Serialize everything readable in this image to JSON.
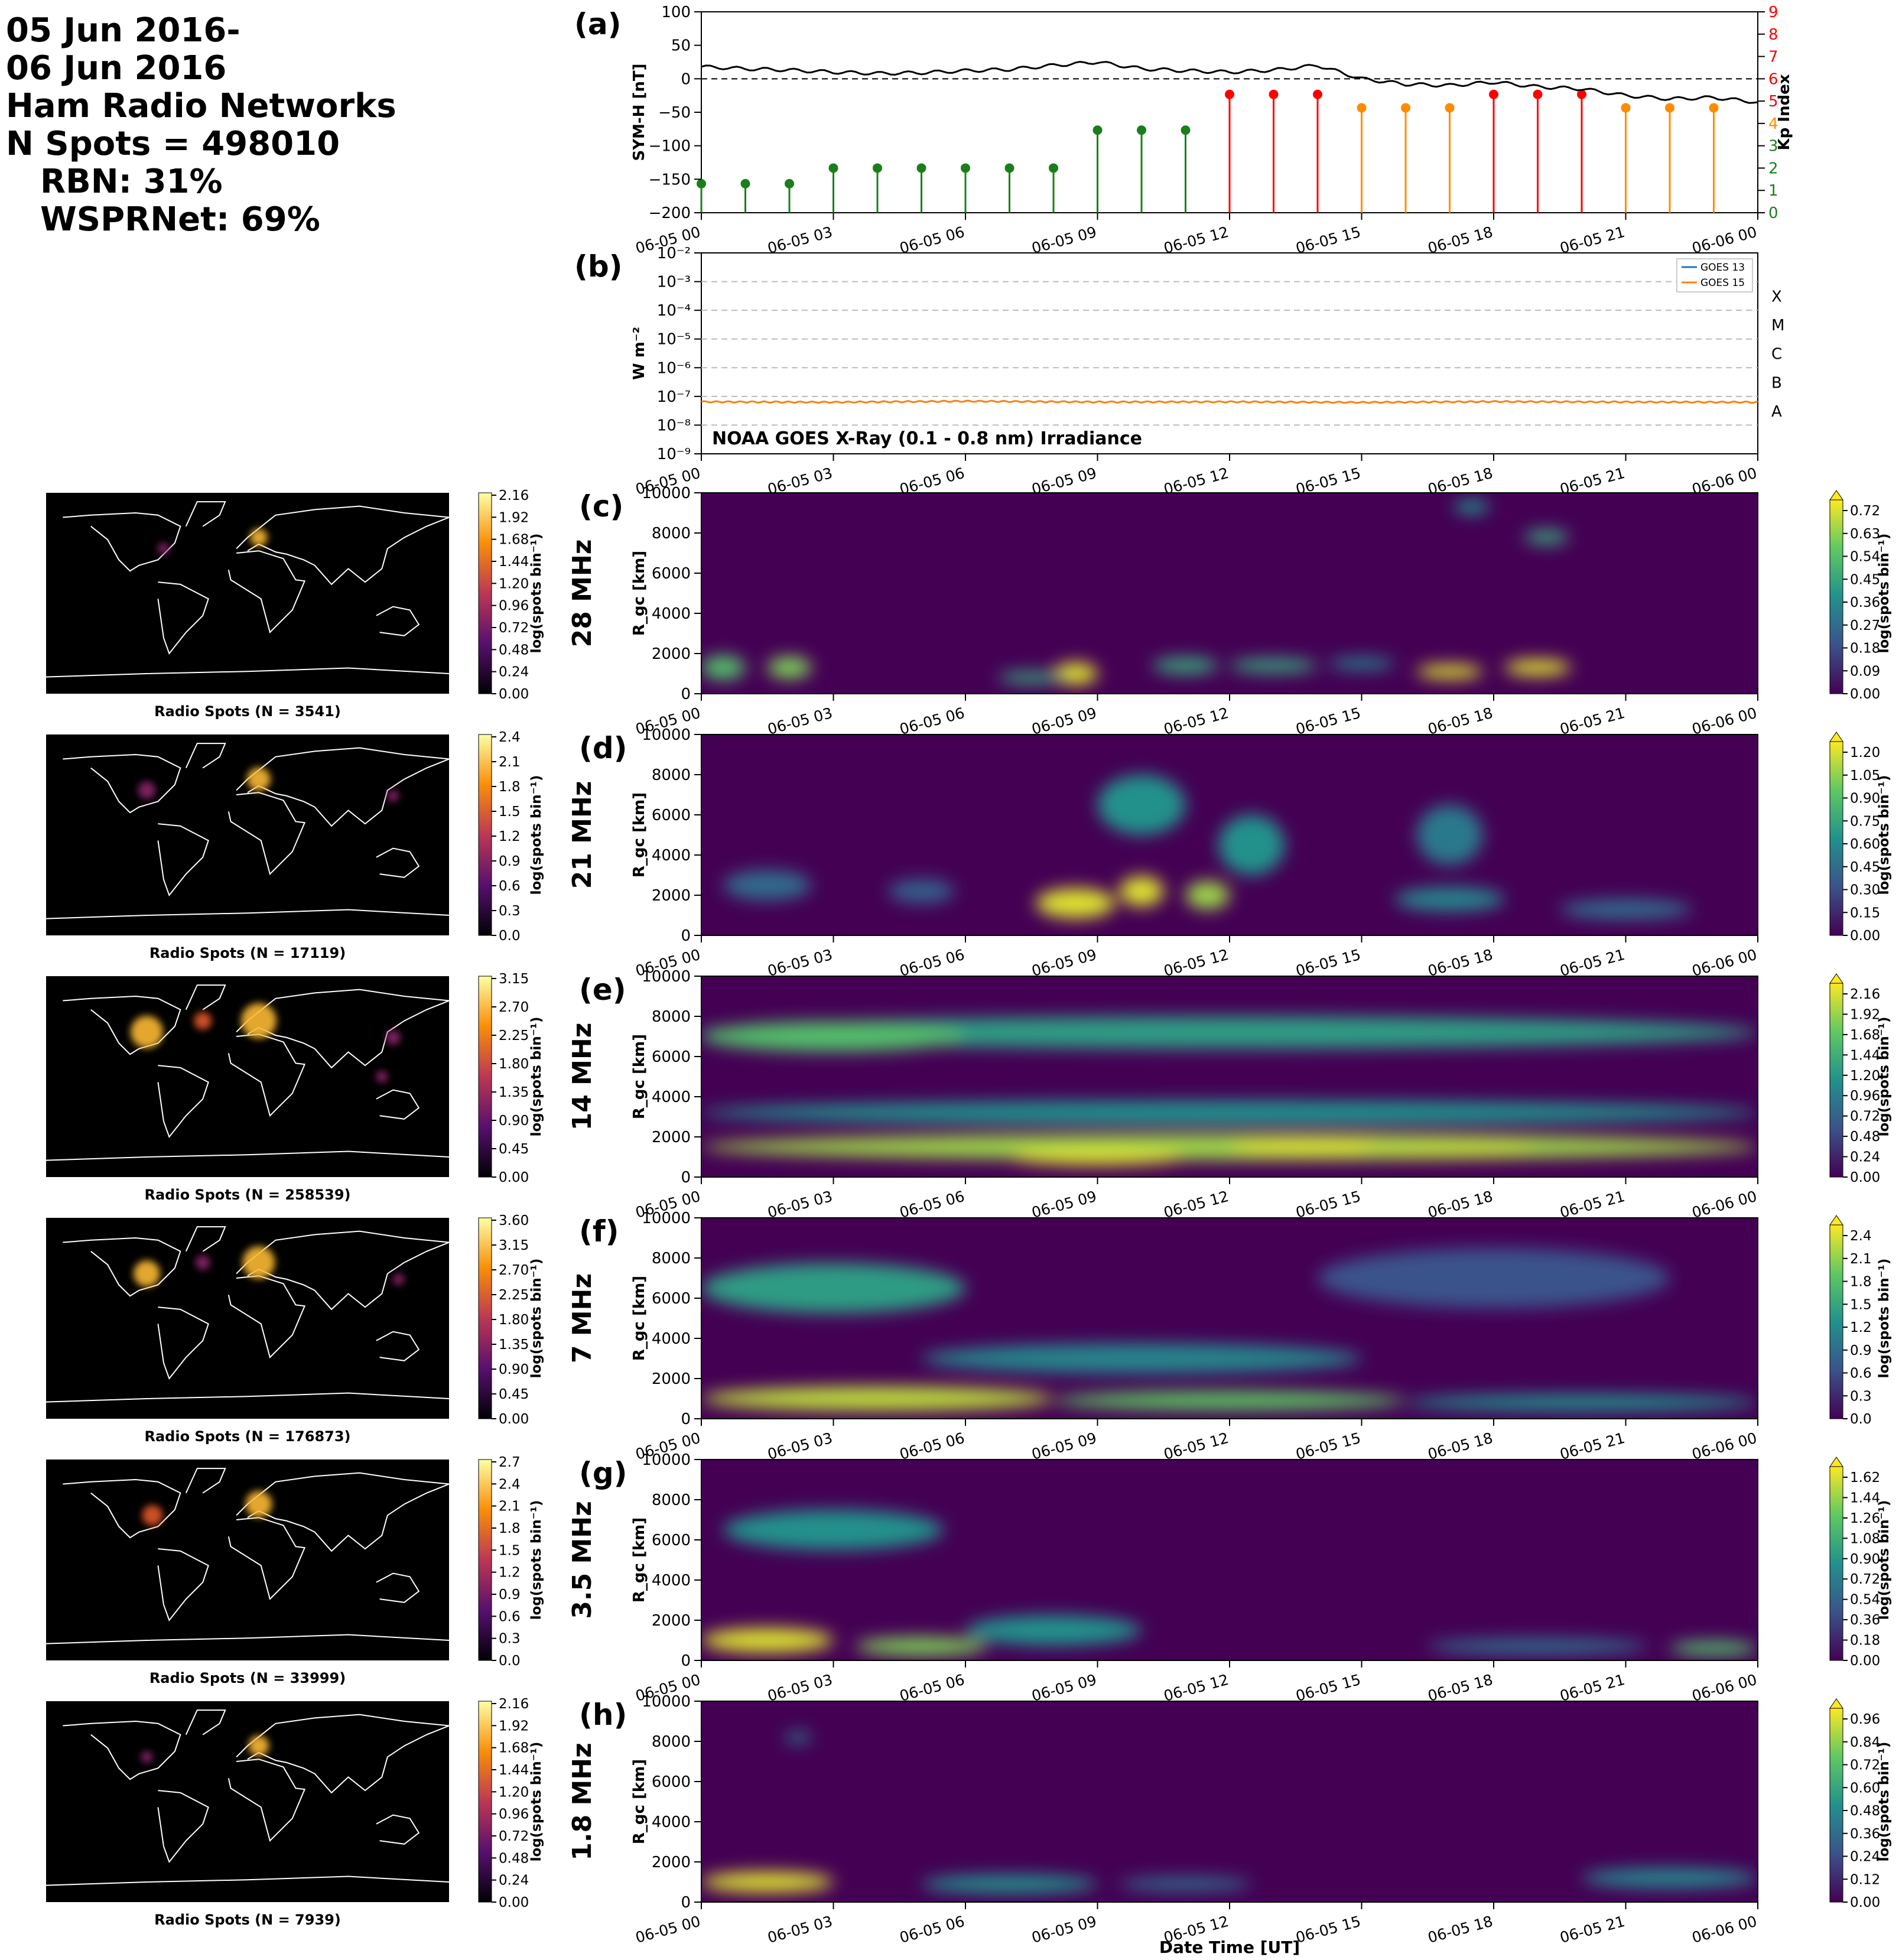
{
  "header": {
    "lines": [
      "05 Jun 2016-",
      "06 Jun 2016",
      "Ham Radio Networks",
      "N Spots = 498010"
    ],
    "rbn": "RBN: 31%",
    "wsprnet": "WSPRNet: 69%"
  },
  "time_ticks": [
    "06-05 00",
    "06-05 03",
    "06-05 06",
    "06-05 09",
    "06-05 12",
    "06-05 15",
    "06-05 18",
    "06-05 21",
    "06-06 00"
  ],
  "xlabel": "Date Time [UT]",
  "colors": {
    "map_bg": "#000000",
    "coast": "#ffffff",
    "symh": "#000000",
    "kp_quiet": "#1a7f1a",
    "kp_moderate": "#ff8c00",
    "kp_storm": "#ff0000",
    "goes13": "#1f77b4",
    "goes15": "#ff7f0e"
  },
  "chart_data": [
    {
      "panel": "(a)",
      "type": "line",
      "ylabel": "SYM-H [nT]",
      "ylim": [
        -200,
        100
      ],
      "yticks": [
        "100",
        "50",
        "0",
        "−50",
        "−100",
        "−150",
        "−200"
      ],
      "series": [
        {
          "x_hours": [
            0,
            1,
            2,
            3,
            4,
            5,
            6,
            7,
            8,
            9,
            10,
            11,
            12,
            13,
            14,
            15,
            16,
            17,
            18,
            19,
            20,
            21,
            22,
            23,
            24
          ],
          "values": [
            18,
            15,
            13,
            10,
            8,
            9,
            12,
            14,
            20,
            25,
            15,
            12,
            10,
            13,
            20,
            0,
            -8,
            -10,
            -5,
            -12,
            -15,
            -25,
            -30,
            -28,
            -35
          ]
        }
      ]
    },
    {
      "panel": "(a)",
      "type": "bar",
      "ylabel": "Kp Index",
      "ylim": [
        0,
        9
      ],
      "yticks": [
        "0",
        "1",
        "2",
        "3",
        "4",
        "5",
        "6",
        "7",
        "8",
        "9"
      ],
      "x_hours": [
        0,
        1,
        2,
        3,
        4,
        5,
        6,
        7,
        8,
        9,
        10,
        11,
        12,
        13,
        14,
        15,
        16,
        17,
        18,
        19,
        20,
        21,
        22,
        23
      ],
      "values": [
        1.3,
        1.3,
        1.3,
        2,
        2,
        2,
        2,
        2,
        2,
        3.7,
        3.7,
        3.7,
        5.3,
        5.3,
        5.3,
        4.7,
        4.7,
        4.7,
        5.3,
        5.3,
        5.3,
        4.7,
        4.7,
        4.7
      ]
    },
    {
      "panel": "(b)",
      "type": "line",
      "ylabel": "W m⁻²",
      "title": "NOAA GOES X-Ray (0.1 - 0.8 nm) Irradiance",
      "yscale": "log",
      "ylim": [
        1e-09,
        0.01
      ],
      "yticks": [
        "10⁻²",
        "10⁻³",
        "10⁻⁴",
        "10⁻⁵",
        "10⁻⁶",
        "10⁻⁷",
        "10⁻⁸",
        "10⁻⁹"
      ],
      "flare_classes": [
        "X",
        "M",
        "C",
        "B",
        "A"
      ],
      "legend": "top-right",
      "series": [
        {
          "name": "GOES 13",
          "values": []
        },
        {
          "name": "GOES 15",
          "x_hours": [
            0,
            3,
            6,
            9,
            12,
            15,
            18,
            21,
            24
          ],
          "values": [
            6.5e-08,
            6.3e-08,
            6.8e-08,
            6.4e-08,
            6.5e-08,
            6.2e-08,
            6.6e-08,
            6.4e-08,
            6.3e-08
          ]
        }
      ]
    },
    {
      "panel": "(c)",
      "band": "28 MHz",
      "type": "heatmap",
      "ylabel": "R_gc [km]",
      "ylim": [
        0,
        10000
      ],
      "yticks": [
        "0",
        "2000",
        "4000",
        "6000",
        "8000",
        "10000"
      ],
      "cbar_label": "log(spots bin⁻¹)",
      "cbar_ticks": [
        "0.00",
        "0.09",
        "0.18",
        "0.27",
        "0.36",
        "0.45",
        "0.54",
        "0.63",
        "0.72"
      ],
      "map_caption": "Radio Spots (N = 3541)",
      "map_cbar_ticks": [
        "0.00",
        "0.24",
        "0.48",
        "0.72",
        "0.96",
        "1.20",
        "1.44",
        "1.68",
        "1.92",
        "2.16"
      ],
      "features": [
        [
          0.5,
          1300,
          1,
          1200,
          0.7
        ],
        [
          2,
          1300,
          1,
          1100,
          0.8
        ],
        [
          8.5,
          1000,
          1,
          1100,
          0.95
        ],
        [
          7.5,
          800,
          1.5,
          600,
          0.6
        ],
        [
          11,
          1400,
          1.5,
          800,
          0.6
        ],
        [
          13,
          1400,
          2,
          700,
          0.6
        ],
        [
          15,
          1500,
          1.5,
          600,
          0.45
        ],
        [
          17,
          1100,
          1.5,
          700,
          0.95
        ],
        [
          19,
          1300,
          1.5,
          800,
          0.95
        ],
        [
          17.5,
          9300,
          0.8,
          700,
          0.5
        ],
        [
          19.2,
          7800,
          1,
          700,
          0.6
        ]
      ]
    },
    {
      "panel": "(d)",
      "band": "21 MHz",
      "type": "heatmap",
      "ylabel": "R_gc [km]",
      "ylim": [
        0,
        10000
      ],
      "yticks": [
        "0",
        "2000",
        "4000",
        "6000",
        "8000",
        "10000"
      ],
      "cbar_label": "log(spots bin⁻¹)",
      "cbar_ticks": [
        "0.00",
        "0.15",
        "0.30",
        "0.45",
        "0.60",
        "0.75",
        "0.90",
        "1.05",
        "1.20"
      ],
      "map_caption": "Radio Spots (N = 17119)",
      "map_cbar_ticks": [
        "0.0",
        "0.3",
        "0.6",
        "0.9",
        "1.2",
        "1.5",
        "1.8",
        "2.1",
        "2.4"
      ],
      "features": [
        [
          1.5,
          2500,
          2,
          1500,
          0.35
        ],
        [
          5,
          2200,
          1.5,
          1200,
          0.3
        ],
        [
          8.5,
          1600,
          1.8,
          1500,
          0.95
        ],
        [
          10,
          2200,
          1,
          1500,
          0.95
        ],
        [
          11.5,
          2000,
          1,
          1400,
          0.85
        ],
        [
          10,
          6500,
          2,
          3000,
          0.5
        ],
        [
          12.5,
          4500,
          1.5,
          3000,
          0.5
        ],
        [
          17,
          5000,
          1.5,
          3000,
          0.4
        ],
        [
          17,
          1800,
          2.5,
          1200,
          0.45
        ],
        [
          21,
          1300,
          3,
          1000,
          0.35
        ]
      ]
    },
    {
      "panel": "(e)",
      "band": "14 MHz",
      "type": "heatmap",
      "ylabel": "R_gc [km]",
      "ylim": [
        0,
        10000
      ],
      "yticks": [
        "0",
        "2000",
        "4000",
        "6000",
        "8000",
        "10000"
      ],
      "cbar_label": "log(spots bin⁻¹)",
      "cbar_ticks": [
        "0.00",
        "0.24",
        "0.48",
        "0.72",
        "0.96",
        "1.20",
        "1.44",
        "1.68",
        "1.92",
        "2.16"
      ],
      "map_caption": "Radio Spots (N = 258539)",
      "map_cbar_ticks": [
        "0.00",
        "0.45",
        "0.90",
        "1.35",
        "1.80",
        "2.25",
        "2.70",
        "3.15"
      ],
      "features": [
        [
          12,
          1500,
          24,
          1300,
          0.85
        ],
        [
          9,
          1000,
          4,
          800,
          0.95
        ],
        [
          14,
          1500,
          4,
          800,
          0.95
        ],
        [
          17,
          1400,
          4,
          900,
          0.9
        ],
        [
          12,
          7200,
          24,
          1600,
          0.55
        ],
        [
          3,
          7000,
          6,
          1500,
          0.7
        ],
        [
          12,
          3200,
          24,
          1200,
          0.5
        ]
      ]
    },
    {
      "panel": "(f)",
      "band": "7 MHz",
      "type": "heatmap",
      "ylabel": "R_gc [km]",
      "ylim": [
        0,
        10000
      ],
      "yticks": [
        "0",
        "2000",
        "4000",
        "6000",
        "8000",
        "10000"
      ],
      "cbar_label": "log(spots bin⁻¹)",
      "cbar_ticks": [
        "0.0",
        "0.3",
        "0.6",
        "0.9",
        "1.2",
        "1.5",
        "1.8",
        "2.1",
        "2.4"
      ],
      "map_caption": "Radio Spots (N = 176873)",
      "map_cbar_ticks": [
        "0.00",
        "0.45",
        "0.90",
        "1.35",
        "1.80",
        "2.25",
        "2.70",
        "3.15",
        "3.60"
      ],
      "features": [
        [
          4,
          1000,
          8,
          1200,
          0.9
        ],
        [
          12,
          900,
          8,
          900,
          0.75
        ],
        [
          20,
          800,
          8,
          800,
          0.5
        ],
        [
          3,
          6500,
          6,
          2500,
          0.55
        ],
        [
          10,
          3000,
          10,
          1500,
          0.45
        ],
        [
          18,
          7000,
          8,
          3000,
          0.25
        ]
      ]
    },
    {
      "panel": "(g)",
      "band": "3.5 MHz",
      "type": "heatmap",
      "ylabel": "R_gc [km]",
      "ylim": [
        0,
        10000
      ],
      "yticks": [
        "0",
        "2000",
        "4000",
        "6000",
        "8000",
        "10000"
      ],
      "cbar_label": "log(spots bin⁻¹)",
      "cbar_ticks": [
        "0.00",
        "0.18",
        "0.36",
        "0.54",
        "0.72",
        "0.90",
        "1.08",
        "1.26",
        "1.44",
        "1.62"
      ],
      "map_caption": "Radio Spots (N = 33999)",
      "map_cbar_ticks": [
        "0.0",
        "0.3",
        "0.6",
        "0.9",
        "1.2",
        "1.5",
        "1.8",
        "2.1",
        "2.4",
        "2.7"
      ],
      "features": [
        [
          1.5,
          1000,
          3,
          1200,
          0.95
        ],
        [
          5,
          700,
          3,
          900,
          0.8
        ],
        [
          8,
          1500,
          4,
          1500,
          0.5
        ],
        [
          3,
          6500,
          5,
          2000,
          0.5
        ],
        [
          19,
          700,
          5,
          800,
          0.35
        ],
        [
          23,
          600,
          2,
          700,
          0.7
        ]
      ]
    },
    {
      "panel": "(h)",
      "band": "1.8 MHz",
      "type": "heatmap",
      "ylabel": "R_gc [km]",
      "ylim": [
        0,
        10000
      ],
      "yticks": [
        "0",
        "2000",
        "4000",
        "6000",
        "8000",
        "10000"
      ],
      "cbar_label": "log(spots bin⁻¹)",
      "cbar_ticks": [
        "0.00",
        "0.12",
        "0.24",
        "0.36",
        "0.48",
        "0.60",
        "0.72",
        "0.84",
        "0.96"
      ],
      "map_caption": "Radio Spots (N = 7939)",
      "map_cbar_ticks": [
        "0.00",
        "0.24",
        "0.48",
        "0.72",
        "0.96",
        "1.20",
        "1.44",
        "1.68",
        "1.92",
        "2.16"
      ],
      "features": [
        [
          1.5,
          1000,
          3,
          1000,
          0.95
        ],
        [
          7,
          900,
          4,
          900,
          0.5
        ],
        [
          11,
          900,
          3,
          700,
          0.35
        ],
        [
          22,
          1200,
          4,
          1000,
          0.45
        ],
        [
          2.2,
          8200,
          0.6,
          500,
          0.45
        ]
      ]
    }
  ]
}
